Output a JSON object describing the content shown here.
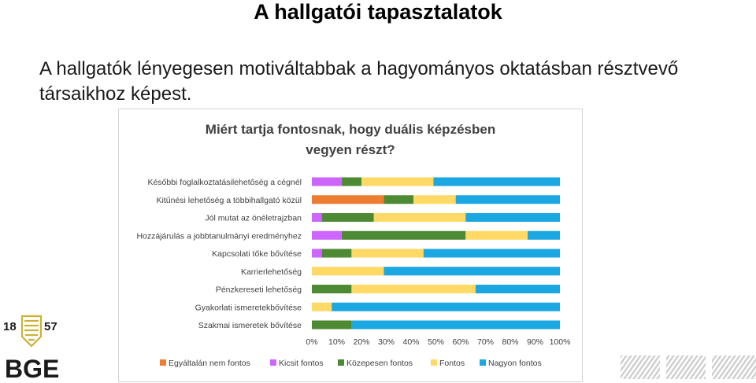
{
  "slide": {
    "title": "A hallgatói tapasztalatok",
    "body": "A hallgatók lényegesen motiváltabbak a hagyományos oktatásban résztvevő társaikhoz képest."
  },
  "logo": {
    "year_left": "18",
    "year_right": "57",
    "name": "BGE",
    "accent": "#c9b23a"
  },
  "chart_data": {
    "type": "bar",
    "stacked": "percent",
    "orientation": "horizontal",
    "title": "Miért tartja fontosnak, hogy duális képzésben vegyen részt?",
    "title_lines": [
      "Miért tartja fontosnak, hogy duális képzésben",
      "vegyen részt?"
    ],
    "categories": [
      "Későbbi foglalkoztatásilehetőség a cégnél",
      "Kitűnési lehetőség a többihallgató közül",
      "Jól mutat az önéletrajzban",
      "Hozzájárulás a jobbtanulmányi eredményhez",
      "Kapcsolati tőke bővítése",
      "Karrierlehetőség",
      "Pénzkereseti lehetőség",
      "Gyakorlati ismeretekbővítése",
      "Szakmai ismeretek bővítése"
    ],
    "series": [
      {
        "name": "Egyáltalán nem fontos",
        "color": "#ed7d31",
        "values": [
          0,
          29,
          0,
          0,
          0,
          0,
          0,
          0,
          0
        ]
      },
      {
        "name": "Kicsit fontos",
        "color": "#cc66ff",
        "values": [
          12,
          0,
          4,
          12,
          4,
          0,
          0,
          0,
          0
        ]
      },
      {
        "name": "Közepesen fontos",
        "color": "#4e8a33",
        "values": [
          8,
          12,
          21,
          50,
          12,
          0,
          16,
          0,
          16
        ]
      },
      {
        "name": "Fontos",
        "color": "#ffd966",
        "values": [
          29,
          17,
          37,
          25,
          29,
          29,
          50,
          8,
          0
        ]
      },
      {
        "name": "Nagyon fontos",
        "color": "#1ba7e1",
        "values": [
          51,
          42,
          38,
          13,
          55,
          71,
          34,
          92,
          84
        ]
      }
    ],
    "xlim": [
      0,
      100
    ],
    "x_ticks": [
      "0%",
      "10%",
      "20%",
      "30%",
      "40%",
      "50%",
      "60%",
      "70%",
      "80%",
      "90%",
      "100%"
    ],
    "legend_position": "bottom",
    "grid": false
  }
}
